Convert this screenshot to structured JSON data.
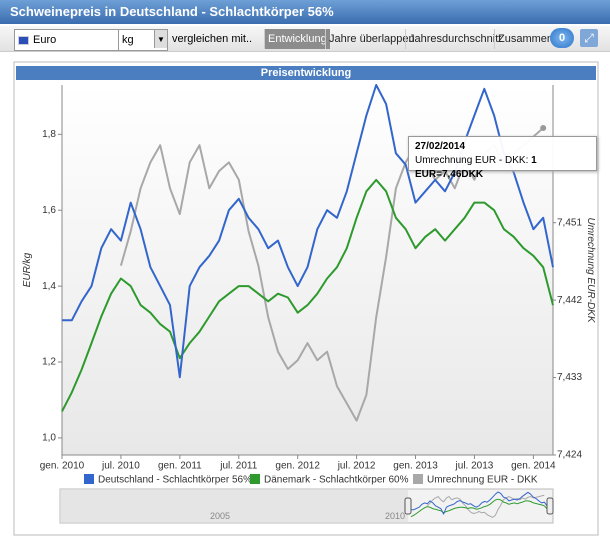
{
  "header": {
    "title": "Schweinepreis in Deutschland - Schlachtkörper 56%"
  },
  "toolbar": {
    "currency": "Euro",
    "unit": "kg",
    "compare": "vergleichen mit..",
    "tabs": [
      "Entwicklung",
      "Jahre überlappen",
      "Jahresdurchschnitt",
      "Zusammen"
    ],
    "badge": "0"
  },
  "tooltip": {
    "date": "27/02/2014",
    "series_label": "Umrechnung EUR - DKK:",
    "value_label": "1 EUR=7,46DKK"
  },
  "navigator": {
    "labels": [
      "2005",
      "2010"
    ]
  },
  "chart_data": {
    "type": "line",
    "title": "Preisentwicklung",
    "ylabel": "EUR/kg",
    "y2label": "Umrechnung EUR-DKK",
    "x": [
      "2010-01",
      "2010-02",
      "2010-03",
      "2010-04",
      "2010-05",
      "2010-06",
      "2010-07",
      "2010-08",
      "2010-09",
      "2010-10",
      "2010-11",
      "2010-12",
      "2011-01",
      "2011-02",
      "2011-03",
      "2011-04",
      "2011-05",
      "2011-06",
      "2011-07",
      "2011-08",
      "2011-09",
      "2011-10",
      "2011-11",
      "2011-12",
      "2012-01",
      "2012-02",
      "2012-03",
      "2012-04",
      "2012-05",
      "2012-06",
      "2012-07",
      "2012-08",
      "2012-09",
      "2012-10",
      "2012-11",
      "2012-12",
      "2013-01",
      "2013-02",
      "2013-03",
      "2013-04",
      "2013-05",
      "2013-06",
      "2013-07",
      "2013-08",
      "2013-09",
      "2013-10",
      "2013-11",
      "2013-12",
      "2014-01",
      "2014-02",
      "2014-03"
    ],
    "xlim": [
      "2010-01",
      "2014-03"
    ],
    "xticks": [
      {
        "value": "2010-01",
        "label": "gen. 2010"
      },
      {
        "value": "2010-07",
        "label": "jul. 2010"
      },
      {
        "value": "2011-01",
        "label": "gen. 2011"
      },
      {
        "value": "2011-07",
        "label": "jul. 2011"
      },
      {
        "value": "2012-01",
        "label": "gen. 2012"
      },
      {
        "value": "2012-07",
        "label": "jul. 2012"
      },
      {
        "value": "2013-01",
        "label": "gen. 2013"
      },
      {
        "value": "2013-07",
        "label": "jul. 2013"
      },
      {
        "value": "2014-01",
        "label": "gen. 2014"
      }
    ],
    "ylim": [
      0.955,
      1.93
    ],
    "yticks": [
      {
        "value": 1.0,
        "label": "1,0"
      },
      {
        "value": 1.2,
        "label": "1,2"
      },
      {
        "value": 1.4,
        "label": "1,4"
      },
      {
        "value": 1.6,
        "label": "1,6"
      },
      {
        "value": 1.8,
        "label": "1,8"
      }
    ],
    "y2lim": [
      7.424,
      7.467
    ],
    "y2ticks": [
      {
        "value": 7.424,
        "label": "7,424"
      },
      {
        "value": 7.433,
        "label": "7,433"
      },
      {
        "value": 7.442,
        "label": "7,442"
      },
      {
        "value": 7.451,
        "label": "7,451"
      }
    ],
    "grid": false,
    "series": [
      {
        "name": "Deutschland - Schlachtkörper 56%",
        "color": "#3366cc",
        "values": [
          1.31,
          1.31,
          1.36,
          1.4,
          1.5,
          1.55,
          1.52,
          1.62,
          1.55,
          1.45,
          1.4,
          1.35,
          1.16,
          1.4,
          1.45,
          1.48,
          1.52,
          1.6,
          1.63,
          1.58,
          1.55,
          1.5,
          1.52,
          1.45,
          1.4,
          1.45,
          1.55,
          1.6,
          1.58,
          1.65,
          1.75,
          1.85,
          1.93,
          1.88,
          1.75,
          1.72,
          1.62,
          1.65,
          1.68,
          1.65,
          1.7,
          1.78,
          1.85,
          1.92,
          1.85,
          1.75,
          1.7,
          1.62,
          1.55,
          1.58,
          1.45
        ]
      },
      {
        "name": "Dänemark - Schlachtkörper 60%",
        "color": "#2e9a2e",
        "values": [
          1.07,
          1.12,
          1.18,
          1.25,
          1.32,
          1.38,
          1.42,
          1.4,
          1.35,
          1.33,
          1.3,
          1.28,
          1.21,
          1.25,
          1.28,
          1.32,
          1.36,
          1.38,
          1.4,
          1.4,
          1.38,
          1.36,
          1.38,
          1.37,
          1.33,
          1.35,
          1.38,
          1.42,
          1.45,
          1.5,
          1.58,
          1.65,
          1.68,
          1.65,
          1.58,
          1.55,
          1.5,
          1.53,
          1.55,
          1.52,
          1.55,
          1.58,
          1.62,
          1.62,
          1.6,
          1.55,
          1.53,
          1.5,
          1.48,
          1.45,
          1.35
        ]
      },
      {
        "name": "Umrechnung EUR - DKK",
        "color": "#a8a8a8",
        "axis": "y2",
        "values": [
          null,
          null,
          null,
          null,
          null,
          null,
          7.446,
          7.45,
          7.455,
          7.458,
          7.46,
          7.455,
          7.452,
          7.458,
          7.46,
          7.455,
          7.457,
          7.458,
          7.456,
          7.45,
          7.446,
          7.44,
          7.436,
          7.434,
          7.435,
          7.437,
          7.435,
          7.436,
          7.432,
          7.43,
          7.428,
          7.431,
          7.44,
          7.447,
          7.455,
          7.458,
          7.46,
          7.458,
          7.456,
          7.457,
          7.455,
          7.458,
          7.456,
          7.459,
          7.46,
          7.458,
          7.459,
          7.46,
          7.461,
          7.462,
          null
        ]
      }
    ]
  }
}
